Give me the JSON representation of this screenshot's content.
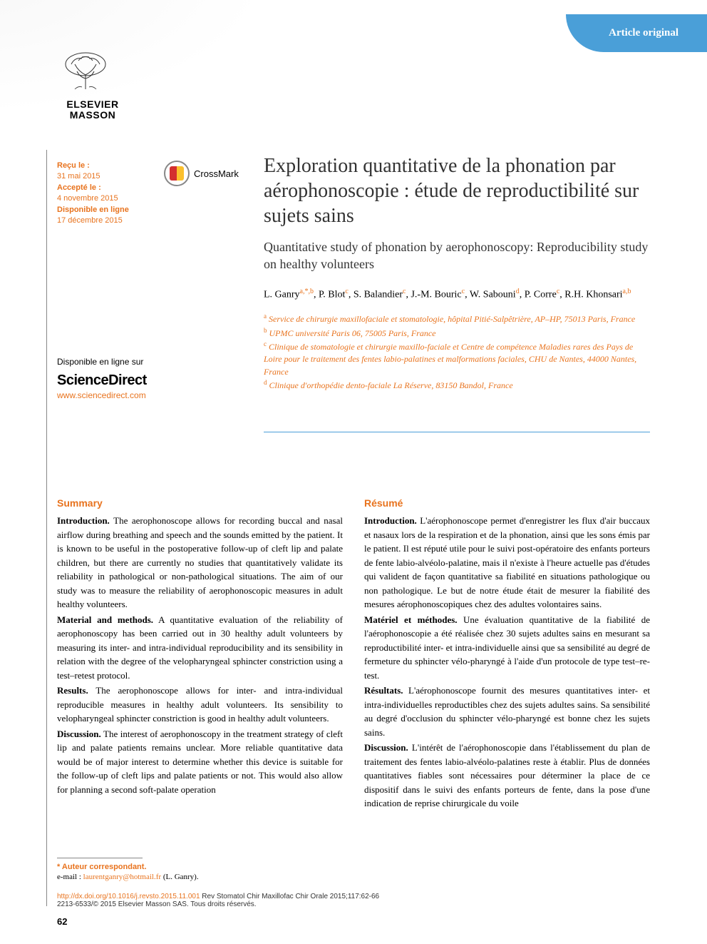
{
  "header": {
    "badge": "Article original",
    "publisher_name": "ELSEVIER MASSON"
  },
  "dates": {
    "received_label": "Reçu le :",
    "received": "31 mai 2015",
    "accepted_label": "Accepté le :",
    "accepted": "4 novembre 2015",
    "online_label": "Disponible en ligne",
    "online": "17 décembre 2015"
  },
  "crossmark": "CrossMark",
  "title": {
    "main": "Exploration quantitative de la phonation par aérophonoscopie : étude de reproductibilité sur sujets sains",
    "sub": "Quantitative study of phonation by aerophonoscopy: Reproducibility study on healthy volunteers"
  },
  "authors_html": "L. Ganry<sup>a,*,b</sup>, P. Blot<sup>c</sup>, S. Balandier<sup>c</sup>, J.-M. Bouric<sup>c</sup>, W. Sabouni<sup>d</sup>, P. Corre<sup>c</sup>, R.H. Khonsari<sup>a,b</sup>",
  "affiliations": {
    "a": "Service de chirurgie maxillofaciale et stomatologie, hôpital Pitié-Salpêtrière, AP–HP, 75013 Paris, France",
    "b": "UPMC université Paris 06, 75005 Paris, France",
    "c": "Clinique de stomatologie et chirurgie maxillo-faciale et Centre de compétence Maladies rares des Pays de Loire pour le traitement des fentes labio-palatines et malformations faciales, CHU de Nantes, 44000 Nantes, France",
    "d": "Clinique d'orthopédie dento-faciale La Réserve, 83150 Bandol, France"
  },
  "sciencedirect": {
    "available": "Disponible en ligne sur",
    "logo": "ScienceDirect",
    "url": "www.sciencedirect.com"
  },
  "summary": {
    "heading": "Summary",
    "intro_label": "Introduction.",
    "intro": " The aerophonoscope allows for recording buccal and nasal airflow during breathing and speech and the sounds emitted by the patient. It is known to be useful in the postoperative follow-up of cleft lip and palate children, but there are currently no studies that quantitatively validate its reliability in pathological or non-pathological situations. The aim of our study was to measure the reliability of aerophonoscopic measures in adult healthy volunteers.",
    "methods_label": "Material and methods.",
    "methods": " A quantitative evaluation of the reliability of aerophonoscopy has been carried out in 30 healthy adult volunteers by measuring its inter- and intra-individual reproducibility and its sensibility in relation with the degree of the velopharyngeal sphincter constriction using a test–retest protocol.",
    "results_label": "Results.",
    "results": " The aerophonoscope allows for inter- and intra-individual reproducible measures in healthy adult volunteers. Its sensibility to velopharyngeal sphincter constriction is good in healthy adult volunteers.",
    "discussion_label": "Discussion.",
    "discussion": " The interest of aerophonoscopy in the treatment strategy of cleft lip and palate patients remains unclear. More reliable quantitative data would be of major interest to determine whether this device is suitable for the follow-up of cleft lips and palate patients or not. This would also allow for planning a second soft-palate operation"
  },
  "resume": {
    "heading": "Résumé",
    "intro_label": "Introduction.",
    "intro": " L'aérophonoscope permet d'enregistrer les flux d'air buccaux et nasaux lors de la respiration et de la phonation, ainsi que les sons émis par le patient. Il est réputé utile pour le suivi post-opératoire des enfants porteurs de fente labio-alvéolo-palatine, mais il n'existe à l'heure actuelle pas d'études qui valident de façon quantitative sa fiabilité en situations pathologique ou non pathologique. Le but de notre étude était de mesurer la fiabilité des mesures aérophonoscopiques chez des adultes volontaires sains.",
    "methods_label": "Matériel et méthodes.",
    "methods": " Une évaluation quantitative de la fiabilité de l'aérophonoscopie a été réalisée chez 30 sujets adultes sains en mesurant sa reproductibilité inter- et intra-individuelle ainsi que sa sensibilité au degré de fermeture du sphincter vélo-pharyngé à l'aide d'un protocole de type test–re-test.",
    "results_label": "Résultats.",
    "results": " L'aérophonoscope fournit des mesures quantitatives inter- et intra-individuelles reproductibles chez des sujets adultes sains. Sa sensibilité au degré d'occlusion du sphincter vélo-pharyngé est bonne chez les sujets sains.",
    "discussion_label": "Discussion.",
    "discussion": " L'intérêt de l'aérophonoscopie dans l'établissement du plan de traitement des fentes labio-alvéolo-palatines reste à établir. Plus de données quantitatives fiables sont nécessaires pour déterminer la place de ce dispositif dans le suivi des enfants porteurs de fente, dans la pose d'une indication de reprise chirurgicale du voile"
  },
  "footer": {
    "corresponding": "* Auteur correspondant.",
    "email_label": "e-mail : ",
    "email": "laurentganry@hotmail.fr",
    "email_author": " (L. Ganry).",
    "doi": "http://dx.doi.org/10.1016/j.revsto.2015.11.001",
    "citation": " Rev Stomatol Chir Maxillofac Chir Orale 2015;117:62-66",
    "copyright": "2213-6533/© 2015 Elsevier Masson SAS. Tous droits réservés."
  },
  "page_number": "62",
  "colors": {
    "accent_orange": "#e8731e",
    "accent_blue": "#4a9fd8",
    "text": "#000000",
    "background": "#ffffff"
  }
}
